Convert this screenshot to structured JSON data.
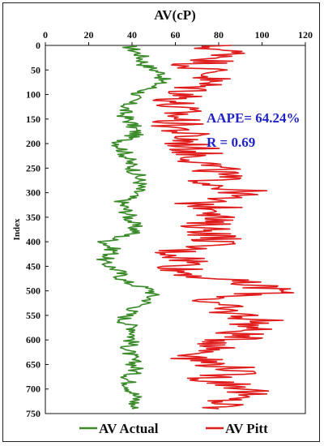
{
  "chart_data": {
    "type": "line",
    "orientation": "vertical-index",
    "title": "AV(cP)",
    "xlabel": "AV(cP)",
    "ylabel": "Index",
    "xlim": [
      0,
      120
    ],
    "ylim": [
      0,
      750
    ],
    "x_ticks": [
      "0",
      "20",
      "40",
      "60",
      "80",
      "100",
      "120"
    ],
    "y_ticks": [
      "0",
      "50",
      "100",
      "150",
      "200",
      "250",
      "300",
      "350",
      "400",
      "450",
      "500",
      "550",
      "600",
      "650",
      "700",
      "750"
    ],
    "grid": false,
    "legend_position": "bottom",
    "annotations": [
      "AAPE= 64.24%",
      "R = 0.69"
    ],
    "series": [
      {
        "name": "AV Actual",
        "color": "#3a8a2a",
        "index": [
          0,
          20,
          40,
          60,
          80,
          100,
          120,
          140,
          160,
          180,
          200,
          220,
          240,
          260,
          280,
          300,
          320,
          340,
          360,
          380,
          400,
          420,
          440,
          460,
          480,
          500,
          520,
          540,
          560,
          580,
          600,
          620,
          640,
          660,
          680,
          700,
          720,
          740
        ],
        "values": [
          38,
          44,
          46,
          55,
          52,
          42,
          38,
          36,
          40,
          42,
          34,
          37,
          39,
          42,
          44,
          42,
          35,
          38,
          40,
          42,
          28,
          32,
          26,
          34,
          36,
          50,
          48,
          40,
          36,
          42,
          40,
          38,
          40,
          42,
          38,
          40,
          42,
          40
        ]
      },
      {
        "name": "AV Pitt",
        "color": "#e01b1b",
        "index": [
          0,
          20,
          40,
          60,
          80,
          100,
          120,
          140,
          160,
          180,
          200,
          220,
          240,
          260,
          280,
          300,
          320,
          340,
          360,
          380,
          400,
          420,
          440,
          460,
          480,
          500,
          520,
          540,
          560,
          580,
          600,
          620,
          640,
          660,
          680,
          700,
          720,
          740
        ],
        "values": [
          75,
          88,
          70,
          78,
          72,
          66,
          58,
          62,
          60,
          64,
          66,
          70,
          74,
          80,
          78,
          92,
          70,
          86,
          72,
          78,
          80,
          60,
          68,
          62,
          84,
          110,
          74,
          82,
          100,
          92,
          86,
          78,
          70,
          90,
          76,
          96,
          84,
          80
        ]
      }
    ]
  }
}
